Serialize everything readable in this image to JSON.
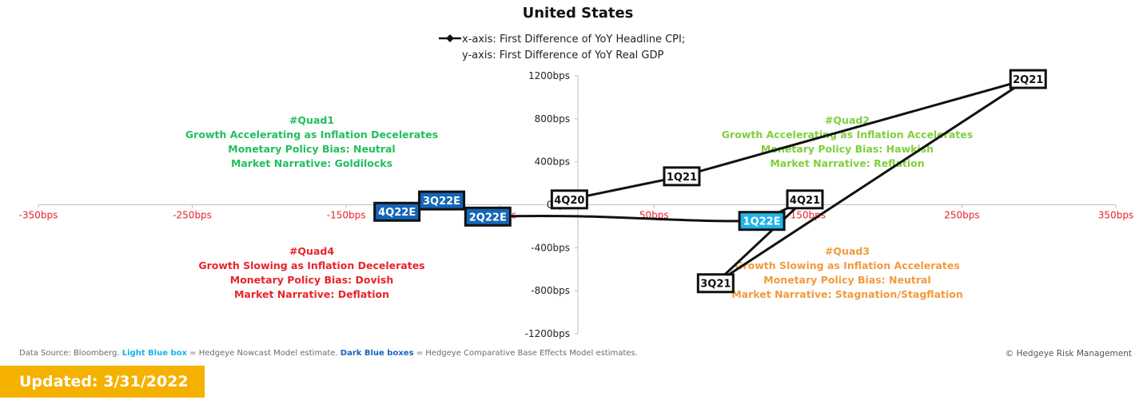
{
  "chart_data": {
    "type": "scatter",
    "title": "United States",
    "legend": {
      "entry_line1": "x-axis: First Difference of YoY Headline CPI;",
      "entry_line2": "y-axis: First Difference of YoY Real GDP",
      "placement": "top-center"
    },
    "x_ticks": [
      "-350bps",
      "-250bps",
      "-150bps",
      "-50bps",
      "50bps",
      "150bps",
      "250bps",
      "350bps"
    ],
    "y_ticks": [
      "1200bps",
      "800bps",
      "400bps",
      "0bps",
      "-400bps",
      "-800bps",
      "-1200bps"
    ],
    "xlim": [
      -350,
      350
    ],
    "ylim": [
      -1200,
      1200
    ],
    "grid": false,
    "series": [
      {
        "points": [
          {
            "label": "4Q20",
            "x": -5,
            "y": 50,
            "style": "actual"
          },
          {
            "label": "1Q21",
            "x": 68,
            "y": 265,
            "style": "actual"
          },
          {
            "label": "2Q21",
            "x": 293,
            "y": 1170,
            "style": "actual"
          },
          {
            "label": "3Q21",
            "x": 90,
            "y": -730,
            "style": "actual"
          },
          {
            "label": "4Q21",
            "x": 148,
            "y": 50,
            "style": "actual"
          },
          {
            "label": "1Q22E",
            "x": 120,
            "y": -150,
            "style": "nowcast"
          },
          {
            "label": "2Q22E",
            "x": -58,
            "y": -110,
            "style": "base_effects"
          },
          {
            "label": "3Q22E",
            "x": -88,
            "y": 40,
            "style": "base_effects"
          },
          {
            "label": "4Q22E",
            "x": -117,
            "y": -65,
            "style": "base_effects"
          }
        ]
      }
    ],
    "quadrants": [
      {
        "id": "quad1",
        "color": "#1fbf5c",
        "lines": [
          "#Quad1",
          "Growth Accelerating as Inflation Decelerates",
          "Monetary Policy Bias: Neutral",
          "Market Narrative: Goldilocks"
        ]
      },
      {
        "id": "quad2",
        "color": "#7fcf3a",
        "lines": [
          "#Quad2",
          "Growth Accelerating as Inflation Accelerates",
          "Monetary Policy Bias: Hawkish",
          "Market Narrative: Reflation"
        ]
      },
      {
        "id": "quad3",
        "color": "#f39a3b",
        "lines": [
          "#Quad3",
          "Growth Slowing as Inflation Accelerates",
          "Monetary Policy Bias: Neutral",
          "Market Narrative: Stagnation/Stagflation"
        ]
      },
      {
        "id": "quad4",
        "color": "#e8242b",
        "lines": [
          "#Quad4",
          "Growth Slowing as Inflation Decelerates",
          "Monetary Policy Bias: Dovish",
          "Market Narrative: Deflation"
        ]
      }
    ],
    "colors": {
      "line": "#111111",
      "nowcast_box": "#1fb4ea",
      "base_effects_box": "#1466b8",
      "x_tick": "#e8242b"
    }
  },
  "footer": {
    "source_prefix": "Data Source: Bloomberg. ",
    "light_blue_label": "Light Blue box",
    "light_blue_desc": " = Hedgeye Nowcast Model estimate. ",
    "dark_blue_label": "Dark Blue boxes",
    "dark_blue_desc": " = Hedgeye Comparative Base Effects Model estimates.",
    "copyright": "© Hedgeye Risk Management"
  },
  "badge": {
    "updated": "Updated: 3/31/2022"
  }
}
